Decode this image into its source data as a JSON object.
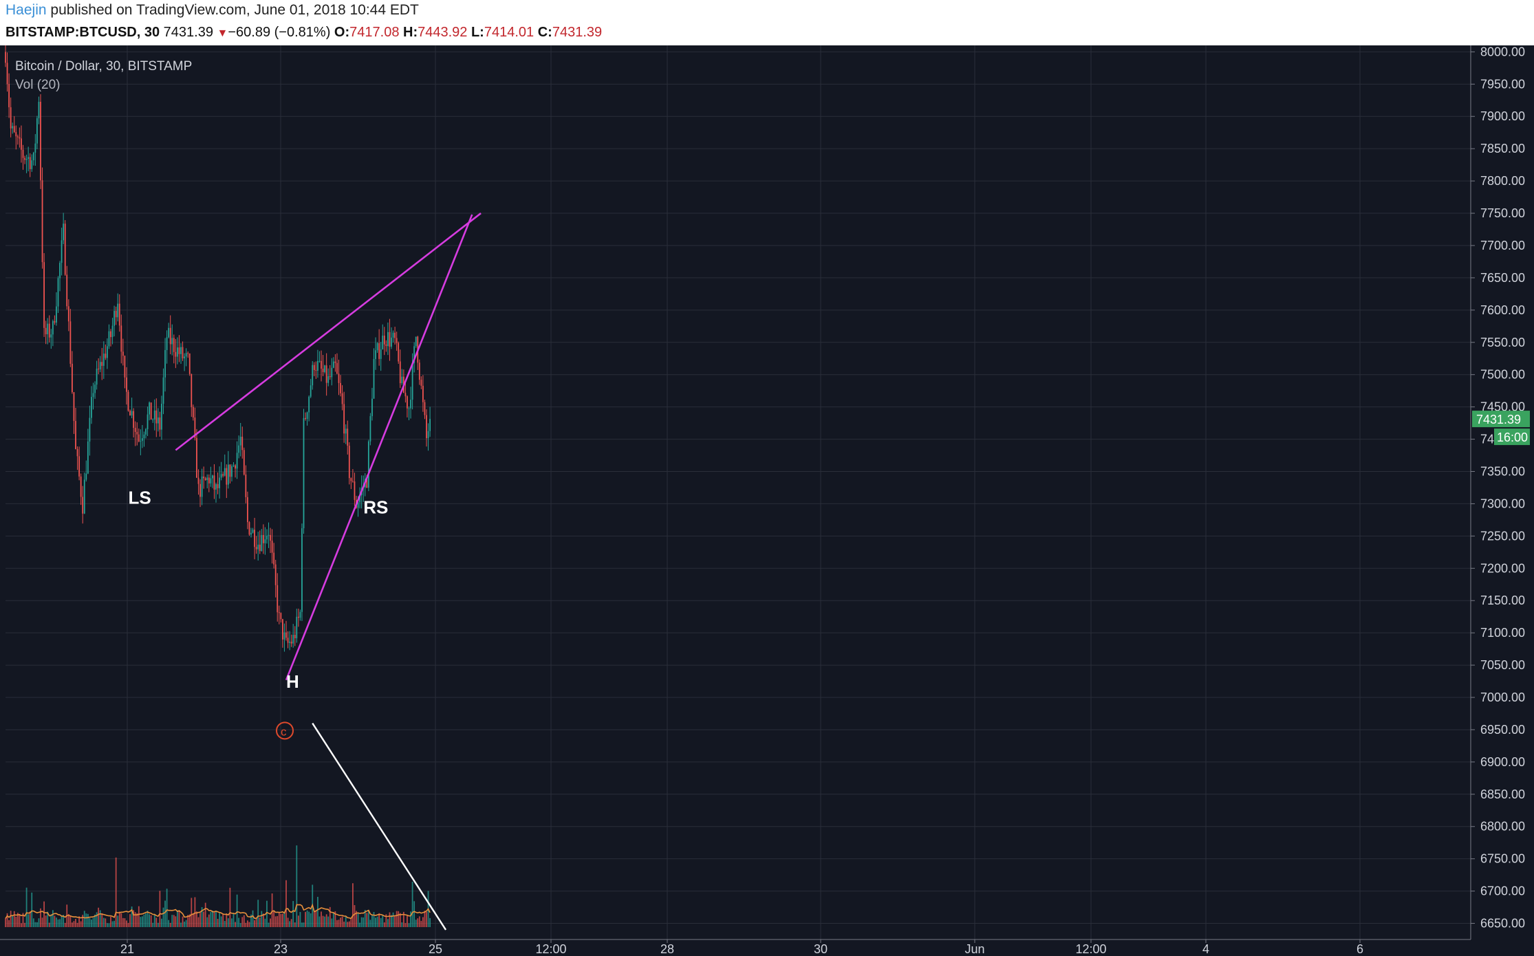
{
  "header": {
    "author": "Haejin",
    "published": "published on TradingView.com, June 01, 2018 10:44 EDT",
    "symbol": "BITSTAMP:BTCUSD, 30",
    "last": "7431.39",
    "change": "−60.89 (−0.81%)",
    "o_label": "O:",
    "o_val": "7417.08",
    "h_label": "H:",
    "h_val": "7443.92",
    "l_label": "L:",
    "l_val": "7414.01",
    "c_label": "C:",
    "c_val": "7431.39"
  },
  "colors": {
    "background": "#131722",
    "grid": "#2a2e39",
    "up": "#26a69a",
    "down": "#ef5350",
    "trendline": "#d63ce0",
    "volume_line": "#e8903c",
    "annotation": "#ffffff",
    "copyright": "#e04a2c",
    "price_badge": "#3aa35f"
  },
  "chart_data": {
    "type": "candlestick",
    "title": "Bitcoin / Dollar, 30, BITSTAMP",
    "indicator": "Vol (20)",
    "ylim": [
      6625,
      8010
    ],
    "yticks": [
      "8000.00",
      "7950.00",
      "7900.00",
      "7850.00",
      "7800.00",
      "7750.00",
      "7700.00",
      "7650.00",
      "7600.00",
      "7550.00",
      "7500.00",
      "7450.00",
      "7400.00",
      "7350.00",
      "7300.00",
      "7250.00",
      "7200.00",
      "7150.00",
      "7100.00",
      "7050.00",
      "7000.00",
      "6950.00",
      "6900.00",
      "6850.00",
      "6800.00",
      "6750.00",
      "6700.00",
      "6650.00"
    ],
    "xticks": [
      "21",
      "23",
      "25",
      "12:00",
      "28",
      "30",
      "Jun",
      "12:00",
      "4",
      "6"
    ],
    "last_price": "7431.39",
    "countdown": "16:00",
    "path": [
      [
        0,
        8000
      ],
      [
        3,
        7880
      ],
      [
        10,
        7840
      ],
      [
        16,
        7830
      ],
      [
        19,
        7930
      ],
      [
        22,
        7560
      ],
      [
        27,
        7570
      ],
      [
        33,
        7720
      ],
      [
        40,
        7380
      ],
      [
        44,
        7300
      ],
      [
        50,
        7480
      ],
      [
        60,
        7560
      ],
      [
        64,
        7620
      ],
      [
        68,
        7480
      ],
      [
        76,
        7400
      ],
      [
        82,
        7440
      ],
      [
        88,
        7420
      ],
      [
        92,
        7560
      ],
      [
        100,
        7530
      ],
      [
        104,
        7520
      ],
      [
        110,
        7320
      ],
      [
        116,
        7340
      ],
      [
        120,
        7320
      ],
      [
        130,
        7360
      ],
      [
        134,
        7400
      ],
      [
        138,
        7270
      ],
      [
        144,
        7240
      ],
      [
        150,
        7260
      ],
      [
        156,
        7120
      ],
      [
        160,
        7080
      ],
      [
        164,
        7090
      ],
      [
        168,
        7130
      ],
      [
        170,
        7420
      ],
      [
        176,
        7520
      ],
      [
        184,
        7490
      ],
      [
        188,
        7510
      ],
      [
        192,
        7450
      ],
      [
        196,
        7350
      ],
      [
        200,
        7300
      ],
      [
        206,
        7340
      ],
      [
        210,
        7520
      ],
      [
        216,
        7560
      ],
      [
        222,
        7550
      ],
      [
        226,
        7480
      ],
      [
        230,
        7450
      ],
      [
        234,
        7560
      ],
      [
        238,
        7450
      ],
      [
        240,
        7400
      ],
      [
        242,
        7431.39
      ]
    ],
    "volume_spikes": [
      [
        63,
        4.6
      ],
      [
        88,
        2.4
      ],
      [
        128,
        2.6
      ],
      [
        160,
        3.1
      ],
      [
        166,
        5.4
      ],
      [
        175,
        2.8
      ],
      [
        178,
        2.0
      ],
      [
        198,
        2.9
      ],
      [
        232,
        3.0
      ]
    ],
    "annotations": [
      {
        "text": "LS",
        "x": 70,
        "y": 7300
      },
      {
        "text": "H",
        "x": 160,
        "y": 7015
      },
      {
        "text": "RS",
        "x": 204,
        "y": 7285
      }
    ],
    "trendlines": [
      {
        "from": [
          97,
          7383
        ],
        "to": [
          271,
          7750
        ]
      },
      {
        "from": [
          160,
          7027
        ],
        "to": [
          266,
          7748
        ]
      }
    ],
    "volume_trendline": {
      "from": [
        175,
        6960
      ],
      "to": [
        251,
        6640
      ]
    },
    "copyright_mark": {
      "x": 160,
      "y": 6940
    }
  }
}
